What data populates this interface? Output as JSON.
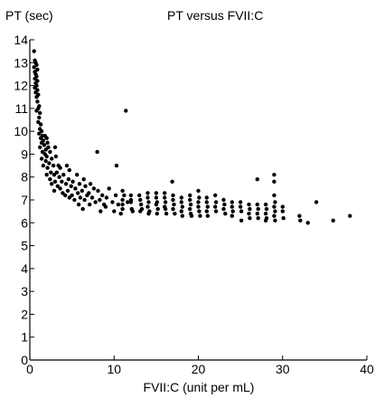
{
  "chart_data": {
    "type": "scatter",
    "title": "PT versus FVII:C",
    "xlabel": "FVII:C (unit per mL)",
    "ylabel": "PT (sec)",
    "xlim": [
      0,
      40
    ],
    "ylim": [
      0,
      14
    ],
    "xticks": [
      "0",
      "10",
      "20",
      "30",
      "40"
    ],
    "yticks": [
      "0",
      "1",
      "2",
      "3",
      "4",
      "5",
      "6",
      "7",
      "8",
      "9",
      "10",
      "11",
      "12",
      "13",
      "14"
    ],
    "grid": false,
    "legend": "none",
    "marker_color": "#000000",
    "points": [
      [
        0.5,
        13.5
      ],
      [
        0.6,
        13.1
      ],
      [
        0.7,
        13.0
      ],
      [
        0.8,
        12.9
      ],
      [
        0.5,
        12.8
      ],
      [
        0.9,
        12.7
      ],
      [
        0.6,
        12.6
      ],
      [
        0.7,
        12.5
      ],
      [
        0.8,
        12.4
      ],
      [
        0.6,
        12.3
      ],
      [
        0.9,
        12.2
      ],
      [
        0.7,
        12.1
      ],
      [
        0.8,
        12.0
      ],
      [
        0.6,
        11.9
      ],
      [
        0.9,
        11.8
      ],
      [
        0.7,
        11.7
      ],
      [
        1.0,
        11.6
      ],
      [
        0.8,
        11.5
      ],
      [
        0.9,
        11.3
      ],
      [
        1.1,
        11.1
      ],
      [
        1.0,
        11.0
      ],
      [
        0.8,
        10.9
      ],
      [
        1.2,
        10.8
      ],
      [
        1.1,
        10.6
      ],
      [
        1.0,
        10.4
      ],
      [
        1.3,
        10.3
      ],
      [
        1.2,
        10.1
      ],
      [
        1.4,
        10.0
      ],
      [
        1.1,
        9.9
      ],
      [
        1.5,
        9.8
      ],
      [
        1.3,
        9.7
      ],
      [
        1.8,
        9.8
      ],
      [
        2.0,
        9.7
      ],
      [
        1.6,
        9.6
      ],
      [
        1.4,
        9.5
      ],
      [
        2.1,
        9.5
      ],
      [
        1.7,
        9.4
      ],
      [
        1.2,
        9.3
      ],
      [
        2.2,
        9.3
      ],
      [
        1.9,
        9.2
      ],
      [
        3.0,
        9.3
      ],
      [
        1.5,
        9.1
      ],
      [
        2.4,
        9.1
      ],
      [
        1.8,
        9.0
      ],
      [
        2.0,
        8.9
      ],
      [
        1.4,
        8.8
      ],
      [
        2.6,
        8.8
      ],
      [
        3.1,
        8.9
      ],
      [
        1.9,
        8.7
      ],
      [
        2.3,
        8.6
      ],
      [
        1.6,
        8.5
      ],
      [
        2.8,
        8.5
      ],
      [
        3.4,
        8.5
      ],
      [
        4.4,
        8.5
      ],
      [
        2.1,
        8.4
      ],
      [
        3.6,
        8.4
      ],
      [
        4.7,
        8.3
      ],
      [
        2.5,
        8.2
      ],
      [
        3.2,
        8.2
      ],
      [
        2.0,
        8.1
      ],
      [
        2.9,
        8.1
      ],
      [
        4.0,
        8.1
      ],
      [
        5.6,
        8.1
      ],
      [
        3.5,
        8.0
      ],
      [
        2.4,
        7.9
      ],
      [
        4.6,
        7.9
      ],
      [
        6.4,
        7.9
      ],
      [
        3.0,
        7.8
      ],
      [
        3.8,
        7.8
      ],
      [
        5.1,
        7.8
      ],
      [
        2.6,
        7.7
      ],
      [
        4.3,
        7.7
      ],
      [
        5.9,
        7.7
      ],
      [
        7.2,
        7.7
      ],
      [
        3.3,
        7.6
      ],
      [
        4.9,
        7.6
      ],
      [
        6.6,
        7.6
      ],
      [
        9.4,
        7.5
      ],
      [
        3.6,
        7.5
      ],
      [
        5.4,
        7.5
      ],
      [
        7.6,
        7.5
      ],
      [
        2.9,
        7.4
      ],
      [
        4.5,
        7.4
      ],
      [
        6.2,
        7.4
      ],
      [
        8.1,
        7.4
      ],
      [
        3.9,
        7.3
      ],
      [
        5.7,
        7.3
      ],
      [
        7.0,
        7.3
      ],
      [
        4.2,
        7.2
      ],
      [
        5.0,
        7.2
      ],
      [
        6.8,
        7.2
      ],
      [
        8.6,
        7.2
      ],
      [
        10.2,
        7.2
      ],
      [
        4.7,
        7.1
      ],
      [
        6.0,
        7.1
      ],
      [
        7.4,
        7.1
      ],
      [
        9.1,
        7.1
      ],
      [
        5.3,
        7.0
      ],
      [
        6.5,
        7.0
      ],
      [
        8.3,
        7.0
      ],
      [
        7.8,
        6.9
      ],
      [
        9.8,
        6.9
      ],
      [
        5.8,
        6.8
      ],
      [
        7.1,
        6.8
      ],
      [
        8.8,
        6.8
      ],
      [
        10.5,
        6.8
      ],
      [
        9.0,
        6.7
      ],
      [
        6.3,
        6.6
      ],
      [
        11.0,
        6.6
      ],
      [
        8.4,
        6.5
      ],
      [
        10.0,
        6.5
      ],
      [
        12.2,
        6.5
      ],
      [
        10.8,
        6.4
      ],
      [
        11.4,
        10.9
      ],
      [
        8.0,
        9.1
      ],
      [
        10.3,
        8.5
      ],
      [
        11.0,
        7.4
      ],
      [
        11.2,
        7.2
      ],
      [
        11.0,
        7.0
      ],
      [
        11.0,
        6.8
      ],
      [
        11.6,
        6.9
      ],
      [
        12.0,
        7.0
      ],
      [
        12.0,
        7.2
      ],
      [
        12.0,
        6.9
      ],
      [
        12.1,
        6.6
      ],
      [
        13.0,
        7.2
      ],
      [
        13.1,
        7.0
      ],
      [
        13.2,
        6.8
      ],
      [
        13.3,
        6.6
      ],
      [
        13.1,
        6.5
      ],
      [
        14.0,
        7.3
      ],
      [
        14.0,
        7.1
      ],
      [
        14.1,
        6.9
      ],
      [
        14.0,
        6.7
      ],
      [
        14.2,
        6.5
      ],
      [
        14.1,
        6.4
      ],
      [
        15.0,
        7.3
      ],
      [
        15.0,
        7.1
      ],
      [
        15.1,
        6.9
      ],
      [
        15.0,
        6.8
      ],
      [
        15.2,
        6.6
      ],
      [
        15.1,
        6.4
      ],
      [
        16.0,
        7.3
      ],
      [
        16.0,
        7.1
      ],
      [
        16.1,
        6.9
      ],
      [
        16.0,
        6.7
      ],
      [
        16.1,
        6.6
      ],
      [
        16.2,
        6.4
      ],
      [
        16.9,
        7.8
      ],
      [
        17.0,
        7.2
      ],
      [
        17.0,
        7.0
      ],
      [
        17.1,
        6.8
      ],
      [
        17.0,
        6.6
      ],
      [
        17.2,
        6.4
      ],
      [
        18.0,
        7.1
      ],
      [
        18.0,
        6.9
      ],
      [
        18.1,
        6.7
      ],
      [
        18.0,
        6.5
      ],
      [
        18.1,
        6.3
      ],
      [
        19.0,
        7.0
      ],
      [
        19.1,
        6.8
      ],
      [
        19.0,
        6.6
      ],
      [
        19.1,
        6.4
      ],
      [
        19.2,
        6.3
      ],
      [
        19.0,
        7.2
      ],
      [
        20.0,
        7.4
      ],
      [
        20.1,
        7.1
      ],
      [
        20.0,
        6.9
      ],
      [
        20.0,
        6.7
      ],
      [
        20.1,
        6.5
      ],
      [
        20.2,
        6.3
      ],
      [
        21.0,
        7.1
      ],
      [
        21.0,
        6.9
      ],
      [
        21.1,
        6.7
      ],
      [
        21.0,
        6.5
      ],
      [
        21.1,
        6.3
      ],
      [
        22.0,
        7.2
      ],
      [
        22.1,
        6.9
      ],
      [
        22.0,
        6.7
      ],
      [
        22.1,
        6.5
      ],
      [
        23.0,
        7.0
      ],
      [
        23.1,
        6.8
      ],
      [
        23.0,
        6.6
      ],
      [
        23.2,
        6.4
      ],
      [
        24.0,
        6.9
      ],
      [
        24.0,
        6.7
      ],
      [
        24.1,
        6.5
      ],
      [
        24.0,
        6.3
      ],
      [
        25.0,
        6.9
      ],
      [
        25.0,
        6.7
      ],
      [
        25.1,
        6.5
      ],
      [
        25.1,
        6.1
      ],
      [
        26.0,
        6.8
      ],
      [
        26.1,
        6.6
      ],
      [
        26.0,
        6.4
      ],
      [
        26.1,
        6.2
      ],
      [
        27.0,
        7.9
      ],
      [
        27.0,
        6.8
      ],
      [
        27.1,
        6.6
      ],
      [
        27.0,
        6.4
      ],
      [
        27.1,
        6.2
      ],
      [
        28.0,
        6.8
      ],
      [
        28.1,
        6.6
      ],
      [
        28.0,
        6.4
      ],
      [
        28.1,
        6.2
      ],
      [
        28.0,
        6.1
      ],
      [
        29.0,
        8.1
      ],
      [
        29.0,
        7.8
      ],
      [
        29.0,
        7.2
      ],
      [
        29.1,
        6.9
      ],
      [
        29.0,
        6.7
      ],
      [
        29.1,
        6.5
      ],
      [
        29.0,
        6.3
      ],
      [
        29.1,
        6.1
      ],
      [
        30.0,
        6.7
      ],
      [
        30.0,
        6.5
      ],
      [
        30.1,
        6.2
      ],
      [
        32.0,
        6.3
      ],
      [
        32.1,
        6.1
      ],
      [
        33.0,
        6.0
      ],
      [
        34.0,
        6.9
      ],
      [
        36.0,
        6.1
      ],
      [
        38.0,
        6.3
      ]
    ]
  }
}
